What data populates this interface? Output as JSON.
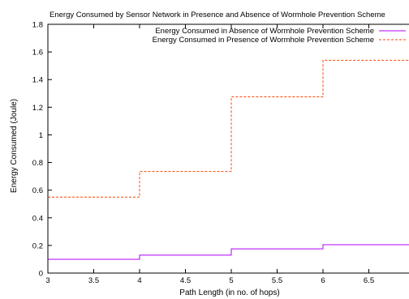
{
  "chart_data": {
    "type": "line",
    "step": true,
    "title": "Energy Consumed by Sensor Network in Presence and Absence of Wormhole Prevention Scheme",
    "xlabel": "Path Length (in no. of hops)",
    "ylabel": "Energy Consumed (Joule)",
    "xlim": [
      3,
      7
    ],
    "ylim": [
      0,
      1.8
    ],
    "xticks": [
      "3",
      "3.5",
      "4",
      "4.5",
      "5",
      "5.5",
      "6",
      "6.5"
    ],
    "yticks": [
      "0",
      "0.2",
      "0.4",
      "0.6",
      "0.8",
      "1",
      "1.2",
      "1.4",
      "1.6",
      "1.8"
    ],
    "grid": false,
    "legend_position": "top-right",
    "series": [
      {
        "name": "Energy Consumed in Absence of Wormhole Prevention Scheme",
        "color": "#b000ff",
        "dash": "solid",
        "x": [
          3,
          4,
          5,
          6,
          7
        ],
        "y": [
          0.1,
          0.13,
          0.175,
          0.205,
          0.205
        ]
      },
      {
        "name": "Energy Consumed in Presence of Wormhole Prevention Scheme",
        "color": "#ff4500",
        "dash": "dashed",
        "x": [
          3,
          4,
          5,
          6,
          7
        ],
        "y": [
          0.55,
          0.735,
          1.275,
          1.54,
          1.54
        ]
      }
    ]
  }
}
